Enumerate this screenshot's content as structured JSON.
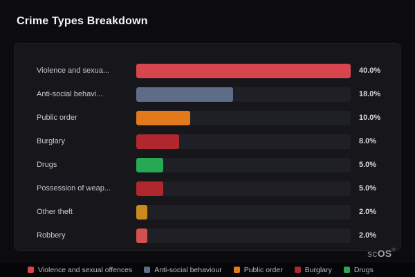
{
  "page": {
    "title": "Crime Types Breakdown",
    "watermark": {
      "prefix": "sc",
      "suffix": "OS",
      "reg": "®"
    }
  },
  "chart_data": {
    "type": "bar",
    "orientation": "horizontal",
    "title": "Crime Types Breakdown",
    "categories": [
      "Violence and sexua...",
      "Anti-social behavi...",
      "Public order",
      "Burglary",
      "Drugs",
      "Possession of weap...",
      "Other theft",
      "Robbery"
    ],
    "values": [
      40.0,
      18.0,
      10.0,
      8.0,
      5.0,
      5.0,
      2.0,
      2.0
    ],
    "value_labels": [
      "40.0%",
      "18.0%",
      "10.0%",
      "8.0%",
      "5.0%",
      "5.0%",
      "2.0%",
      "2.0%"
    ],
    "bar_colors": [
      "#d8454f",
      "#5d6c87",
      "#e2791b",
      "#b0282e",
      "#27a852",
      "#b0282e",
      "#cc8a1e",
      "#d35050"
    ],
    "xlim": [
      0,
      40
    ],
    "track_color": "#1f1f26",
    "grid": false,
    "legend_position": "bottom",
    "legend": [
      {
        "label": "Violence and sexual offences",
        "color": "#d8454f"
      },
      {
        "label": "Anti-social behaviour",
        "color": "#5d6c87"
      },
      {
        "label": "Public order",
        "color": "#e2791b"
      },
      {
        "label": "Burglary",
        "color": "#b0282e"
      },
      {
        "label": "Drugs",
        "color": "#27a852"
      }
    ]
  }
}
